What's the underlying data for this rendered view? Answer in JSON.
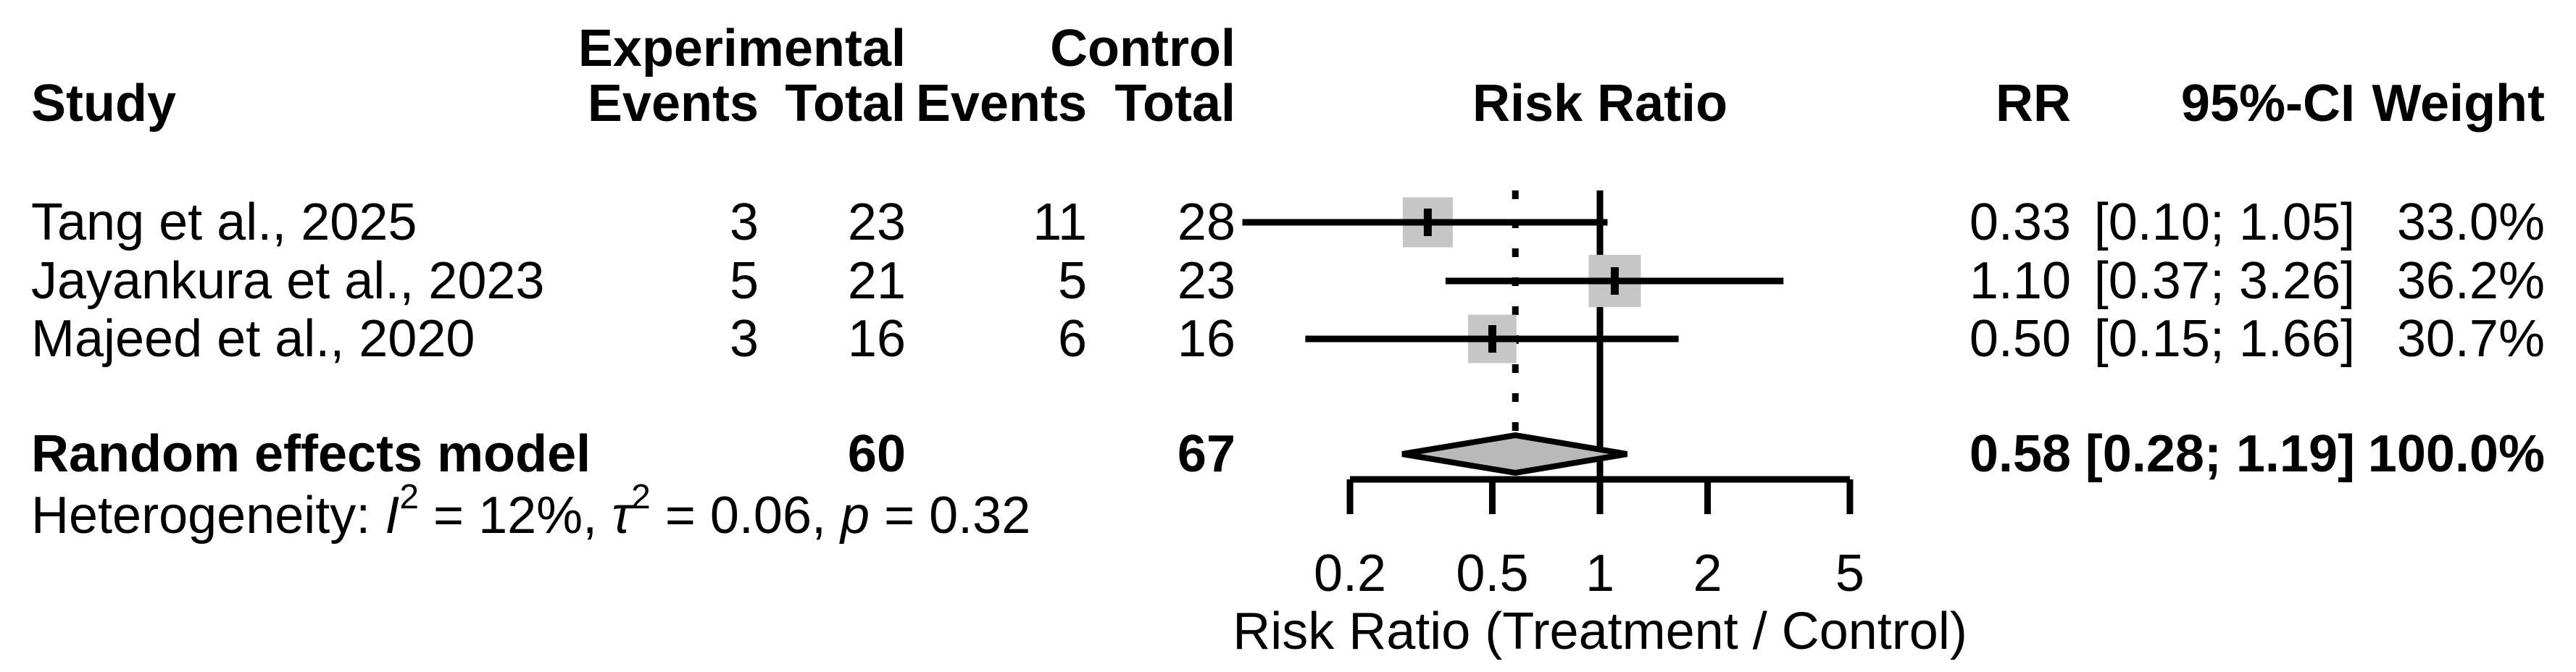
{
  "table": {
    "headers": {
      "study": "Study",
      "experimental_group": "Experimental",
      "control_group": "Control",
      "exp_events": "Events",
      "exp_total": "Total",
      "ctrl_events": "Events",
      "ctrl_total": "Total",
      "risk_ratio_plot": "Risk Ratio",
      "rr": "RR",
      "ci": "95%-CI",
      "weight": "Weight"
    },
    "rows": [
      {
        "study": "Tang et al., 2025",
        "exp_events": "3",
        "exp_total": "23",
        "ctrl_events": "11",
        "ctrl_total": "28",
        "rr_text": "0.33",
        "ci_text": "[0.10; 1.05]",
        "weight_text": "33.0%"
      },
      {
        "study": "Jayankura et al., 2023",
        "exp_events": "5",
        "exp_total": "21",
        "ctrl_events": "5",
        "ctrl_total": "23",
        "rr_text": "1.10",
        "ci_text": "[0.37; 3.26]",
        "weight_text": "36.2%"
      },
      {
        "study": "Majeed et al., 2020",
        "exp_events": "3",
        "exp_total": "16",
        "ctrl_events": "6",
        "ctrl_total": "16",
        "rr_text": "0.50",
        "ci_text": "[0.15; 1.66]",
        "weight_text": "30.7%"
      }
    ],
    "summary": {
      "label": "Random effects model",
      "exp_total": "60",
      "ctrl_total": "67",
      "rr_text": "0.58",
      "ci_text": "[0.28; 1.19]",
      "weight_text": "100.0%"
    },
    "heterogeneity_parts": [
      "Heterogeneity: ",
      "I",
      "2",
      " = 12%, ",
      "τ",
      "2",
      " = 0.06, ",
      "p",
      " = 0.32"
    ]
  },
  "chart_data": {
    "type": "forest",
    "x_scale": "log10",
    "axis": {
      "ticks": [
        0.2,
        0.5,
        1,
        2,
        5
      ],
      "tick_labels": [
        "0.2",
        "0.5",
        "1",
        "2",
        "5"
      ],
      "range": [
        0.2,
        5
      ],
      "title": "Risk Ratio (Treatment / Control)",
      "reference_line": 1,
      "overall_dotted_line": 0.58
    },
    "studies": [
      {
        "name": "Tang et al., 2025",
        "exp_events": 3,
        "exp_total": 23,
        "ctrl_events": 11,
        "ctrl_total": 28,
        "rr": 0.33,
        "ci_low": 0.1,
        "ci_high": 1.05,
        "weight_pct": 33.0
      },
      {
        "name": "Jayankura et al., 2023",
        "exp_events": 5,
        "exp_total": 21,
        "ctrl_events": 5,
        "ctrl_total": 23,
        "rr": 1.1,
        "ci_low": 0.37,
        "ci_high": 3.26,
        "weight_pct": 36.2
      },
      {
        "name": "Majeed et al., 2020",
        "exp_events": 3,
        "exp_total": 16,
        "ctrl_events": 6,
        "ctrl_total": 16,
        "rr": 0.5,
        "ci_low": 0.15,
        "ci_high": 1.66,
        "weight_pct": 30.7
      }
    ],
    "overall": {
      "label": "Random effects model",
      "model": "random-effects",
      "exp_total": 60,
      "ctrl_total": 67,
      "rr": 0.58,
      "ci_low": 0.28,
      "ci_high": 1.19,
      "weight_pct": 100.0
    },
    "heterogeneity": {
      "i2": "12%",
      "tau2": "0.06",
      "p": "0.32"
    },
    "colors": {
      "square": "#c6c6c6",
      "diamond": "#b9b9b9",
      "line": "#000000",
      "text": "#000000",
      "background": "#ffffff"
    }
  }
}
